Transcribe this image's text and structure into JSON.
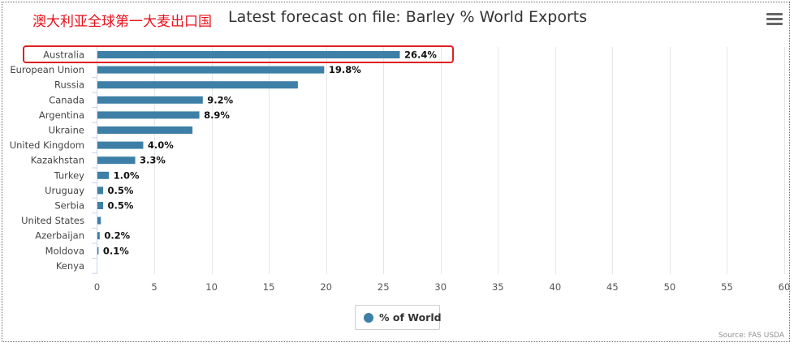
{
  "overlay_text": "澳大利亚全球第一大麦出口国",
  "legend_label": "% of World",
  "credit": "Source: FAS USDA",
  "colors": {
    "bar": "#3d7fa6",
    "highlight": "#e02020",
    "overlay_text": "#e8111b",
    "grid": "#e6e6e6"
  },
  "chart_data": {
    "type": "bar",
    "orientation": "horizontal",
    "title": "Latest forecast on file: Barley % World Exports",
    "categories": [
      "Australia",
      "European Union",
      "Russia",
      "Canada",
      "Argentina",
      "Ukraine",
      "United Kingdom",
      "Kazakhstan",
      "Turkey",
      "Uruguay",
      "Serbia",
      "United States",
      "Azerbaijan",
      "Moldova",
      "Kenya"
    ],
    "series": [
      {
        "name": "% of World",
        "values": [
          26.4,
          19.8,
          17.5,
          9.2,
          8.9,
          8.3,
          4.0,
          3.3,
          1.0,
          0.5,
          0.5,
          0.3,
          0.2,
          0.1,
          0.0
        ]
      }
    ],
    "data_labels": [
      "26.4%",
      "19.8%",
      "",
      "9.2%",
      "8.9%",
      "",
      "4.0%",
      "3.3%",
      "1.0%",
      "0.5%",
      "0.5%",
      "",
      "0.2%",
      "0.1%",
      ""
    ],
    "xlim": [
      0,
      60
    ],
    "xticks": [
      0,
      5,
      10,
      15,
      20,
      25,
      30,
      35,
      40,
      45,
      50,
      55,
      60
    ],
    "grid": true,
    "legend": "bottom-center",
    "highlighted_category": "Australia"
  }
}
